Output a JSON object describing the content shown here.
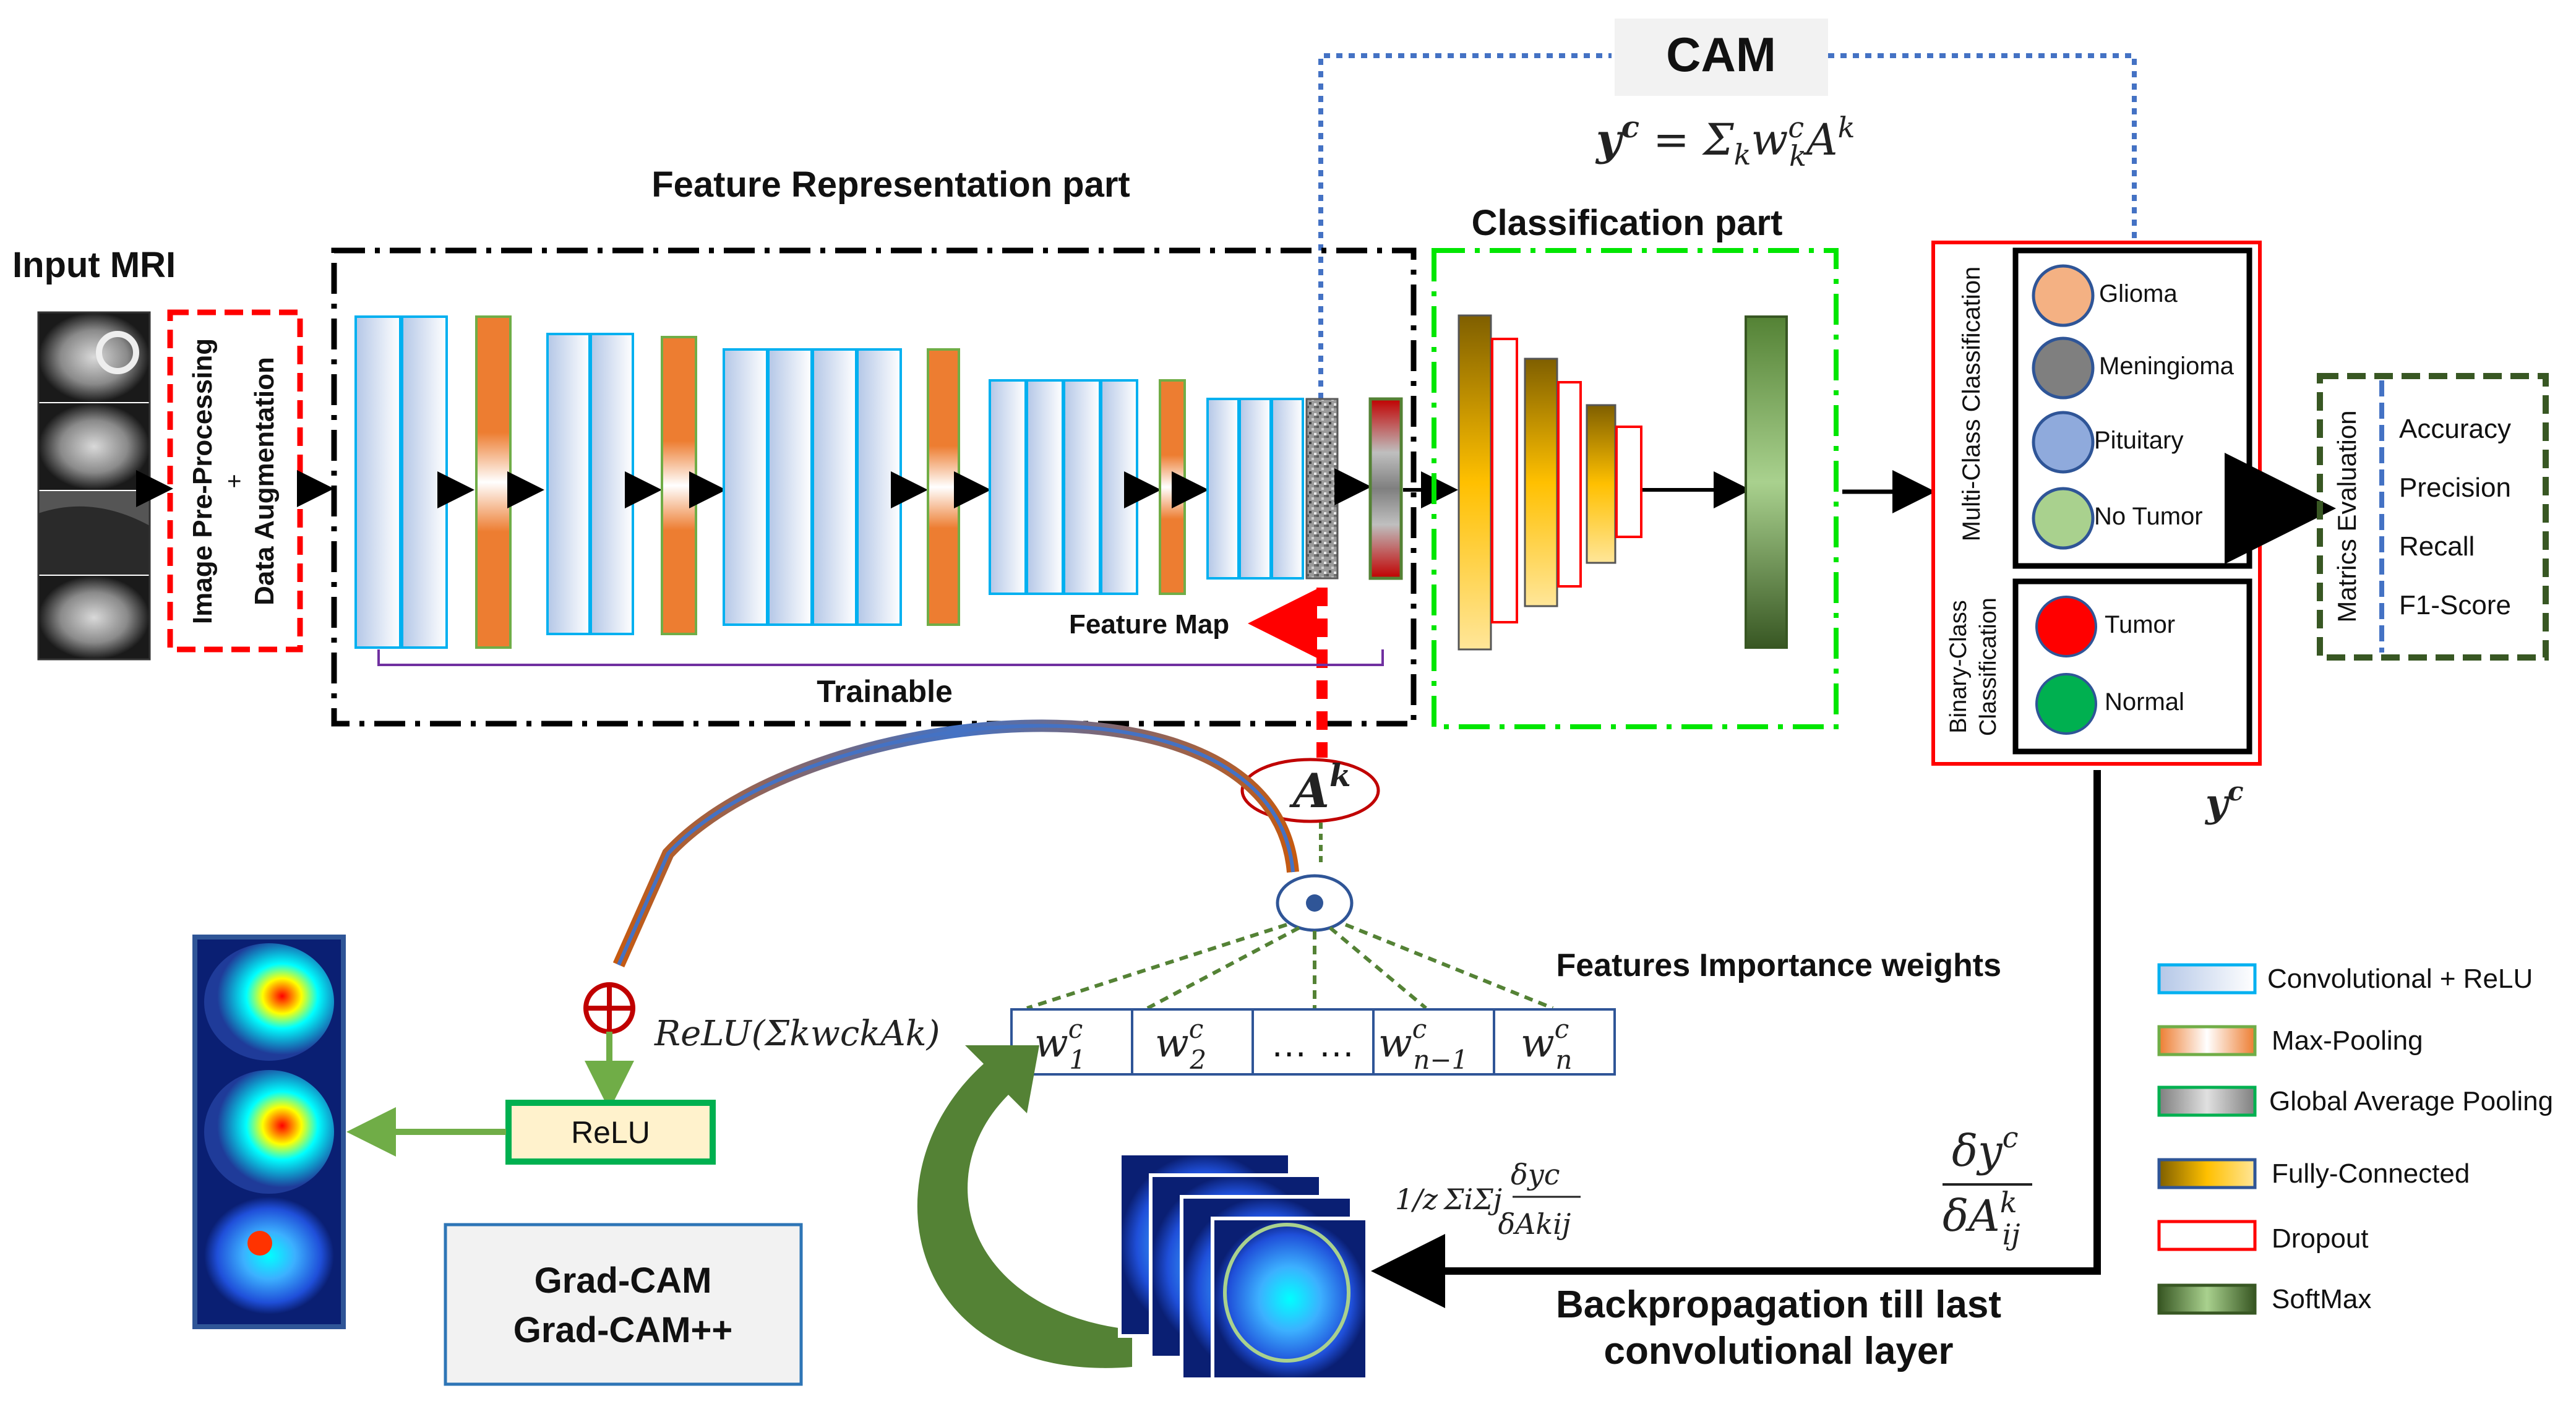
{
  "cam": {
    "title": "CAM",
    "formula_y": "y",
    "formula_sup": "c",
    "formula_rest": " = Σ",
    "formula_sub_k": "k",
    "formula_w": "w",
    "formula_w_sup": "c",
    "formula_w_sub": "k",
    "formula_A": "A",
    "formula_A_sup": "k"
  },
  "input": {
    "title": "Input MRI"
  },
  "preprocessing": {
    "line1": "Image Pre-Processing",
    "plus": "+",
    "line2": "Data Augmentation"
  },
  "feature_part": {
    "title": "Feature Representation part",
    "trainable": "Trainable",
    "feature_map": "Feature Map"
  },
  "classification_part": {
    "title": "Classification part"
  },
  "multiclass": {
    "title": "Multi-Class Classification",
    "classes": [
      {
        "label": "Glioma",
        "color": "#f4b183"
      },
      {
        "label": "Meningioma",
        "color": "#7f7f7f"
      },
      {
        "label": "Pituitary",
        "color": "#8faadc"
      },
      {
        "label": "No Tumor",
        "color": "#a9d18e"
      }
    ]
  },
  "binaryclass": {
    "title_line1": "Binary-Class",
    "title_line2": "Classification",
    "classes": [
      {
        "label": "Tumor",
        "color": "#ff0000"
      },
      {
        "label": "Normal",
        "color": "#00b050"
      }
    ]
  },
  "metrics": {
    "title": "Matrics Evaluation",
    "items": [
      "Accuracy",
      "Precision",
      "Recall",
      "F1-Score"
    ]
  },
  "output_label": {
    "y": "y",
    "sup": "c"
  },
  "ak": {
    "A": "A",
    "sup": "k"
  },
  "weights": {
    "title": "Features Importance weights",
    "cells": [
      {
        "w": "w",
        "sup": "c",
        "sub": "1"
      },
      {
        "w": "w",
        "sup": "c",
        "sub": "2"
      },
      {
        "w": "… …",
        "sup": "",
        "sub": ""
      },
      {
        "w": "w",
        "sup": "c",
        "sub": "n−1"
      },
      {
        "w": "w",
        "sup": "c",
        "sub": "n"
      }
    ]
  },
  "relu_formula": "ReLU(ΣkwckAk)",
  "relu_box": "ReLU",
  "gradcam": {
    "line1": "Grad-CAM",
    "line2": "Grad-CAM++"
  },
  "gradient_formula": {
    "frac": "1/z",
    "sums": "ΣiΣj",
    "num": "δyc",
    "den": "δAkij"
  },
  "deriv": {
    "num": "δy",
    "num_sup": "c",
    "den": "δA",
    "den_sup": "k",
    "den_sub": "ij"
  },
  "backprop": {
    "line1": "Backpropagation till last",
    "line2": "convolutional layer"
  },
  "legend": [
    {
      "label": "Convolutional + ReLU",
      "kind": "conv"
    },
    {
      "label": "Max-Pooling",
      "kind": "pool"
    },
    {
      "label": "Global Average Pooling",
      "kind": "gap"
    },
    {
      "label": "Fully-Connected",
      "kind": "fc"
    },
    {
      "label": "Dropout",
      "kind": "dropout"
    },
    {
      "label": "SoftMax",
      "kind": "softmax"
    }
  ]
}
